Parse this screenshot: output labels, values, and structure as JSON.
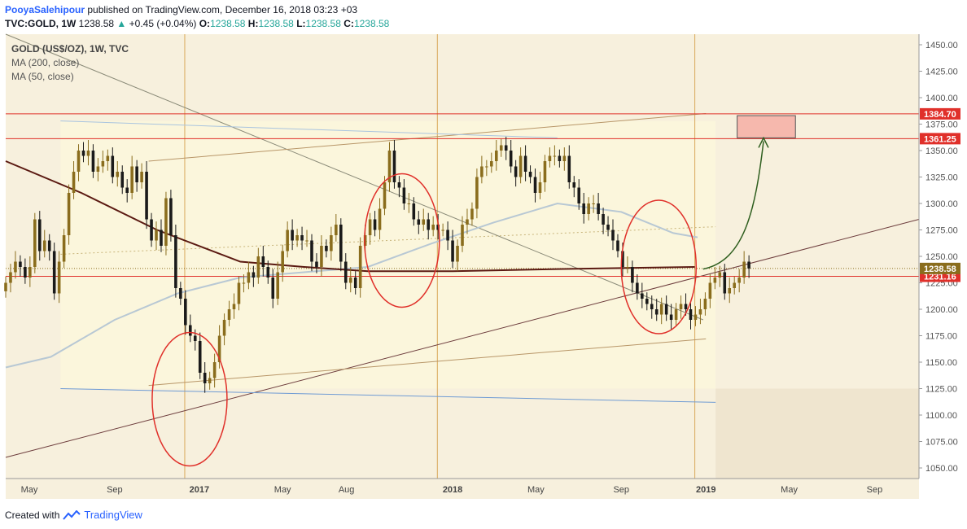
{
  "header": {
    "author": "PooyaSalehipour",
    "published_text": "published on TradingView.com, December 16, 2018 03:23 +03",
    "symbol": "TVC:GOLD, 1W",
    "price": "1238.58",
    "change_arrow": "▲",
    "change": "+0.45 (+0.04%)",
    "open_label": "O:",
    "open": "1238.58",
    "high_label": "H:",
    "high": "1238.58",
    "low_label": "L:",
    "low": "1238.58",
    "close_label": "C:",
    "close": "1238.58"
  },
  "legend": {
    "title": "GOLD (US$/OZ), 1W, TVC",
    "ma200": "MA (200, close)",
    "ma50": "MA (50, close)"
  },
  "footer": {
    "created_with": "Created with",
    "brand": "TradingView"
  },
  "colors": {
    "background": "#f7f0dd",
    "bull_candle": "#8a6d1d",
    "bear_candle": "#1a1a1a",
    "ma200": "#5b1a12",
    "ma50": "#b8c8d4",
    "hline": "#e0302a",
    "annotation": "#e0302a",
    "arrow": "#2e5e1e",
    "target_box": "#f6b8ad",
    "price_label": "#8a6d1d"
  },
  "chart_data": {
    "type": "candlestick",
    "title": "GOLD (US$/OZ), 1W, TVC",
    "ylim": [
      1040,
      1460
    ],
    "yticks": [
      1050,
      1075,
      1100,
      1125,
      1150,
      1175,
      1200,
      1225,
      1250,
      1275,
      1300,
      1325,
      1350,
      1375,
      1400,
      1425,
      1450
    ],
    "ytick_labels": [
      "1050.00",
      "1075.00",
      "1100.00",
      "1125.00",
      "1150.00",
      "1175.00",
      "1200.00",
      "1225.00",
      "1250.00",
      "1275.00",
      "1300.00",
      "1325.00",
      "1350.00",
      "1375.00",
      "1400.00",
      "1425.00",
      "1450.00"
    ],
    "xlim": [
      "2016-03-28",
      "2019-11-04"
    ],
    "xticks": [
      {
        "date": "2016-05-01",
        "label": "May"
      },
      {
        "date": "2016-09-01",
        "label": "Sep"
      },
      {
        "date": "2017-01-01",
        "label": "2017",
        "bold": true
      },
      {
        "date": "2017-05-01",
        "label": "May"
      },
      {
        "date": "2017-08-01",
        "label": "Aug"
      },
      {
        "date": "2018-01-01",
        "label": "2018",
        "bold": true
      },
      {
        "date": "2018-05-01",
        "label": "May"
      },
      {
        "date": "2018-09-01",
        "label": "Sep"
      },
      {
        "date": "2019-01-01",
        "label": "2019",
        "bold": true
      },
      {
        "date": "2019-05-01",
        "label": "May"
      },
      {
        "date": "2019-09-01",
        "label": "Sep"
      }
    ],
    "vlines": [
      "2016-12-11",
      "2017-12-10",
      "2018-12-16"
    ],
    "candles_first_week": "2016-03-28",
    "candle_closes": [
      1225,
      1235,
      1245,
      1240,
      1230,
      1240,
      1285,
      1255,
      1265,
      1255,
      1215,
      1245,
      1270,
      1310,
      1330,
      1350,
      1345,
      1350,
      1330,
      1335,
      1340,
      1345,
      1325,
      1330,
      1315,
      1310,
      1335,
      1320,
      1330,
      1285,
      1265,
      1275,
      1260,
      1305,
      1270,
      1220,
      1210,
      1185,
      1175,
      1170,
      1140,
      1130,
      1135,
      1150,
      1175,
      1190,
      1200,
      1205,
      1225,
      1225,
      1235,
      1230,
      1250,
      1240,
      1230,
      1210,
      1235,
      1255,
      1275,
      1265,
      1270,
      1265,
      1265,
      1245,
      1240,
      1260,
      1255,
      1270,
      1280,
      1245,
      1225,
      1230,
      1220,
      1260,
      1270,
      1285,
      1275,
      1295,
      1320,
      1350,
      1320,
      1315,
      1300,
      1300,
      1285,
      1280,
      1285,
      1275,
      1280,
      1275,
      1275,
      1265,
      1245,
      1260,
      1280,
      1285,
      1295,
      1325,
      1335,
      1335,
      1340,
      1350,
      1355,
      1350,
      1335,
      1325,
      1345,
      1330,
      1325,
      1310,
      1320,
      1340,
      1345,
      1345,
      1340,
      1345,
      1320,
      1315,
      1300,
      1290,
      1300,
      1300,
      1290,
      1280,
      1275,
      1265,
      1255,
      1240,
      1240,
      1225,
      1215,
      1210,
      1205,
      1200,
      1195,
      1205,
      1195,
      1190,
      1200,
      1205,
      1200,
      1190,
      1195,
      1200,
      1210,
      1225,
      1230,
      1235,
      1215,
      1220,
      1225,
      1230,
      1245,
      1238.58
    ],
    "ma200": [
      {
        "date": "2016-03-28",
        "value": 1340
      },
      {
        "date": "2016-07-15",
        "value": 1310
      },
      {
        "date": "2016-11-01",
        "value": 1275
      },
      {
        "date": "2017-03-01",
        "value": 1245
      },
      {
        "date": "2017-06-01",
        "value": 1240
      },
      {
        "date": "2017-09-01",
        "value": 1236
      },
      {
        "date": "2018-01-01",
        "value": 1236
      },
      {
        "date": "2018-06-01",
        "value": 1238
      },
      {
        "date": "2018-12-16",
        "value": 1240
      }
    ],
    "ma50": [
      {
        "date": "2016-03-28",
        "value": 1145
      },
      {
        "date": "2016-06-01",
        "value": 1155
      },
      {
        "date": "2016-09-01",
        "value": 1190
      },
      {
        "date": "2016-12-01",
        "value": 1215
      },
      {
        "date": "2017-03-01",
        "value": 1230
      },
      {
        "date": "2017-06-01",
        "value": 1235
      },
      {
        "date": "2017-09-01",
        "value": 1240
      },
      {
        "date": "2017-12-01",
        "value": 1262
      },
      {
        "date": "2018-03-01",
        "value": 1282
      },
      {
        "date": "2018-06-01",
        "value": 1300
      },
      {
        "date": "2018-09-01",
        "value": 1292
      },
      {
        "date": "2018-11-15",
        "value": 1272
      },
      {
        "date": "2018-12-20",
        "value": 1268
      }
    ],
    "horizontal_levels": [
      {
        "value": 1384.7,
        "label": "1384.70",
        "color": "red"
      },
      {
        "value": 1361.25,
        "label": "1361.25",
        "color": "red"
      },
      {
        "value": 1231.16,
        "label": "1231.16",
        "color": "red"
      },
      {
        "value": 1238.58,
        "label": "1238.58",
        "color": "gold"
      }
    ],
    "trend_lines": [
      {
        "from": {
          "date": "2016-03-28",
          "value": 1460
        },
        "to": {
          "date": "2018-12-28",
          "value": 1190
        },
        "color": "#8a8a78"
      },
      {
        "from": {
          "date": "2016-03-28",
          "value": 1060
        },
        "to": {
          "date": "2019-11-04",
          "value": 1285
        },
        "color": "#6e3e3e"
      },
      {
        "from": {
          "date": "2016-10-20",
          "value": 1340
        },
        "to": {
          "date": "2019-01-01",
          "value": 1385
        },
        "color": "#b89668"
      },
      {
        "from": {
          "date": "2016-10-20",
          "value": 1128
        },
        "to": {
          "date": "2019-01-01",
          "value": 1172
        },
        "color": "#b89668"
      },
      {
        "from": {
          "date": "2016-06-15",
          "value": 1378
        },
        "to": {
          "date": "2018-06-01",
          "value": 1362
        },
        "color": "#a9c4df"
      },
      {
        "from": {
          "date": "2016-06-15",
          "value": 1125
        },
        "to": {
          "date": "2019-01-15",
          "value": 1112
        },
        "color": "#6f9bd4"
      },
      {
        "from": {
          "date": "2016-06-15",
          "value": 1252
        },
        "to": {
          "date": "2019-01-15",
          "value": 1278
        },
        "color": "#c8b47a",
        "dotted": true
      }
    ],
    "range_box": {
      "from": "2016-06-15",
      "to": "2019-01-15",
      "top": 1378,
      "bottom": 1125
    },
    "target_box": {
      "from": "2019-02-15",
      "to": "2019-05-10",
      "top": 1383,
      "bottom": 1362
    },
    "circled_lows": [
      {
        "center_date": "2016-12-18",
        "center_value": 1115
      },
      {
        "center_date": "2017-10-20",
        "center_value": 1265
      },
      {
        "center_date": "2018-10-25",
        "center_value": 1240
      }
    ],
    "projection_arrow": {
      "from": {
        "date": "2018-12-28",
        "value": 1238
      },
      "to": {
        "date": "2019-03-25",
        "value": 1362
      }
    }
  }
}
